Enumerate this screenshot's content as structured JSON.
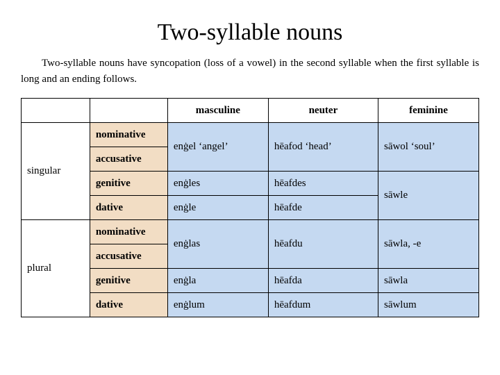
{
  "title": "Two-syllable nouns",
  "description": "Two-syllable nouns have syncopation (loss of a vowel) in the second syllable when the first syllable is long and an ending follows.",
  "table": {
    "colors": {
      "case_column_bg": "#f2ddc4",
      "data_cell_bg": "#c5d9f1",
      "header_bg": "#ffffff",
      "border": "#000000"
    },
    "column_headers": {
      "masculine": "masculine",
      "neuter": "neuter",
      "feminine": "feminine"
    },
    "numbers": {
      "singular": "singular",
      "plural": "plural"
    },
    "cases": {
      "nominative": "nominative",
      "accusative": "accusative",
      "genitive": "genitive",
      "dative": "dative"
    },
    "singular": {
      "nom_acc": {
        "m": "enġel ‘angel’",
        "n": "hēafod ‘head’",
        "f": "sāwol ‘soul’"
      },
      "genitive": {
        "m": "enġles",
        "n": "hēafdes"
      },
      "dative": {
        "m": "enġle",
        "n": "hēafde"
      },
      "gen_dat_f": "sāwle"
    },
    "plural": {
      "nom_acc": {
        "m": "enġlas",
        "n": "hēafdu",
        "f": "sāwla, -e"
      },
      "genitive": {
        "m": "enġla",
        "n": "hēafda",
        "f": "sāwla"
      },
      "dative": {
        "m": "enġlum",
        "n": "hēafdum",
        "f": "sāwlum"
      }
    }
  }
}
